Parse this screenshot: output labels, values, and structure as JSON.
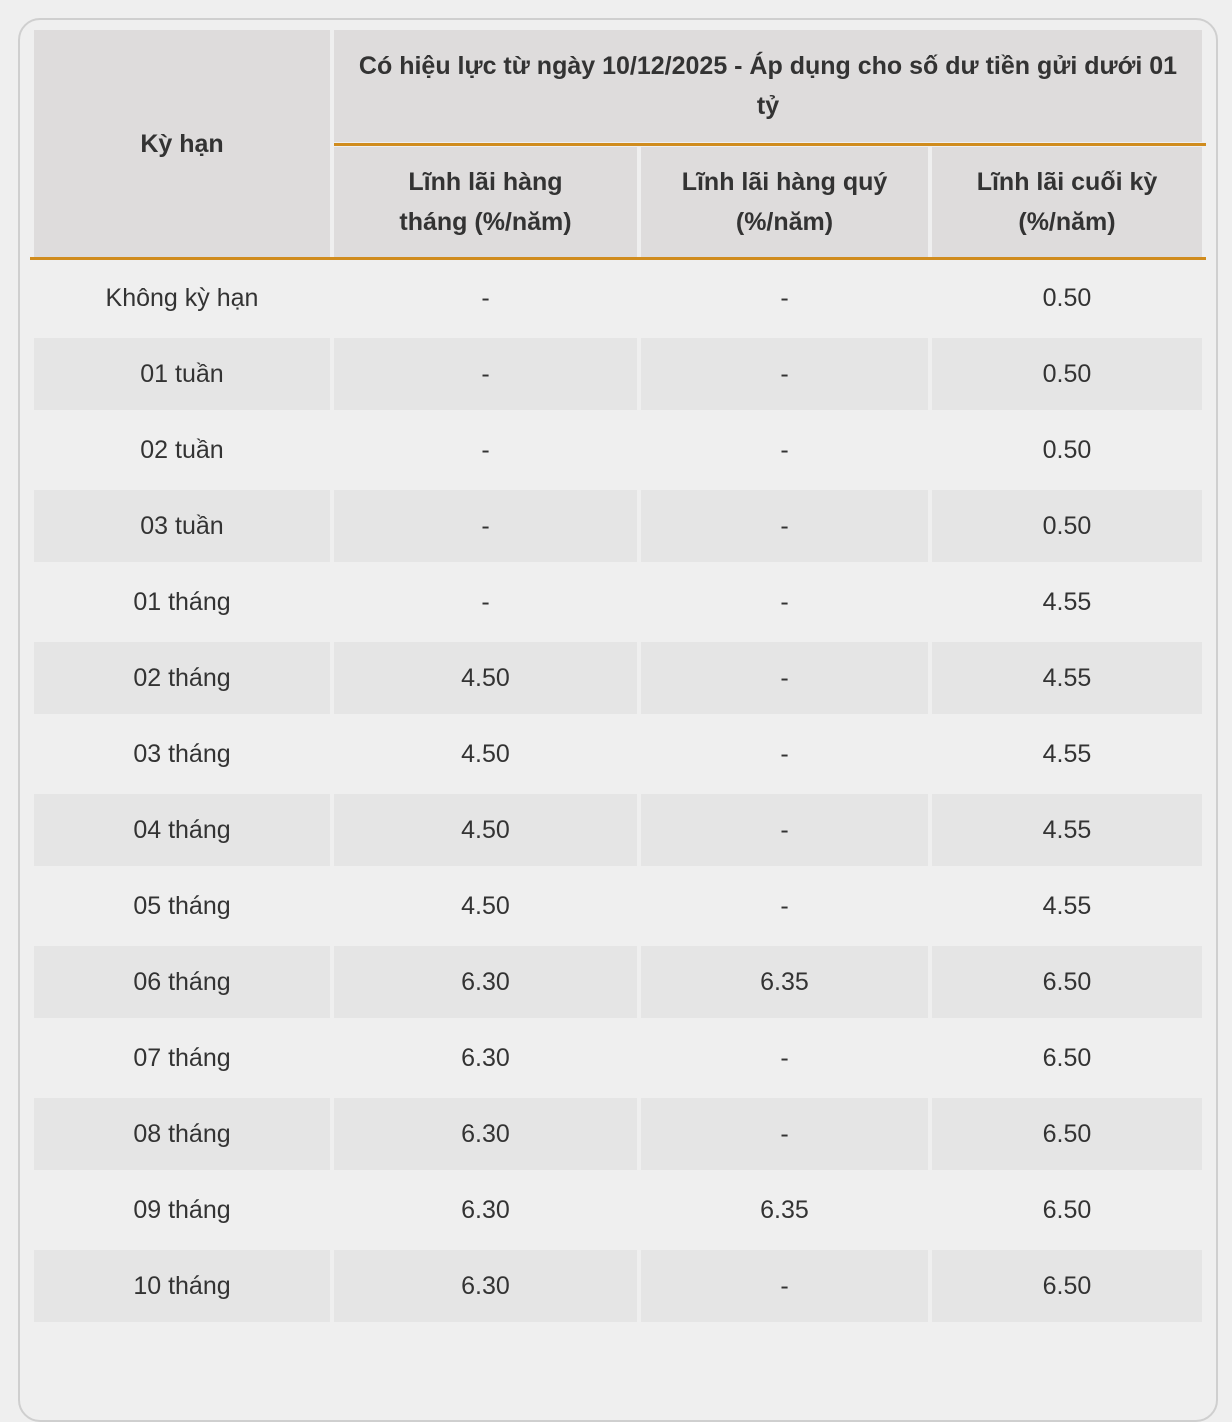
{
  "table": {
    "header": {
      "term": "Kỳ hạn",
      "group": "Có hiệu lực từ ngày 10/12/2025 - Áp dụng cho số dư tiền gửi dưới 01 tỷ",
      "columns": [
        "Lĩnh lãi hàng tháng (%/năm)",
        "Lĩnh lãi hàng quý (%/năm)",
        "Lĩnh lãi cuối kỳ (%/năm)"
      ]
    },
    "accent_color": "#d08c1e",
    "rows": [
      [
        "Không kỳ hạn",
        "-",
        "-",
        "0.50"
      ],
      [
        "01 tuần",
        "-",
        "-",
        "0.50"
      ],
      [
        "02 tuần",
        "-",
        "-",
        "0.50"
      ],
      [
        "03 tuần",
        "-",
        "-",
        "0.50"
      ],
      [
        "01 tháng",
        "-",
        "-",
        "4.55"
      ],
      [
        "02 tháng",
        "4.50",
        "-",
        "4.55"
      ],
      [
        "03 tháng",
        "4.50",
        "-",
        "4.55"
      ],
      [
        "04 tháng",
        "4.50",
        "-",
        "4.55"
      ],
      [
        "05 tháng",
        "4.50",
        "-",
        "4.55"
      ],
      [
        "06 tháng",
        "6.30",
        "6.35",
        "6.50"
      ],
      [
        "07 tháng",
        "6.30",
        "-",
        "6.50"
      ],
      [
        "08 tháng",
        "6.30",
        "-",
        "6.50"
      ],
      [
        "09 tháng",
        "6.30",
        "6.35",
        "6.50"
      ],
      [
        "10 tháng",
        "6.30",
        "-",
        "6.50"
      ]
    ]
  }
}
